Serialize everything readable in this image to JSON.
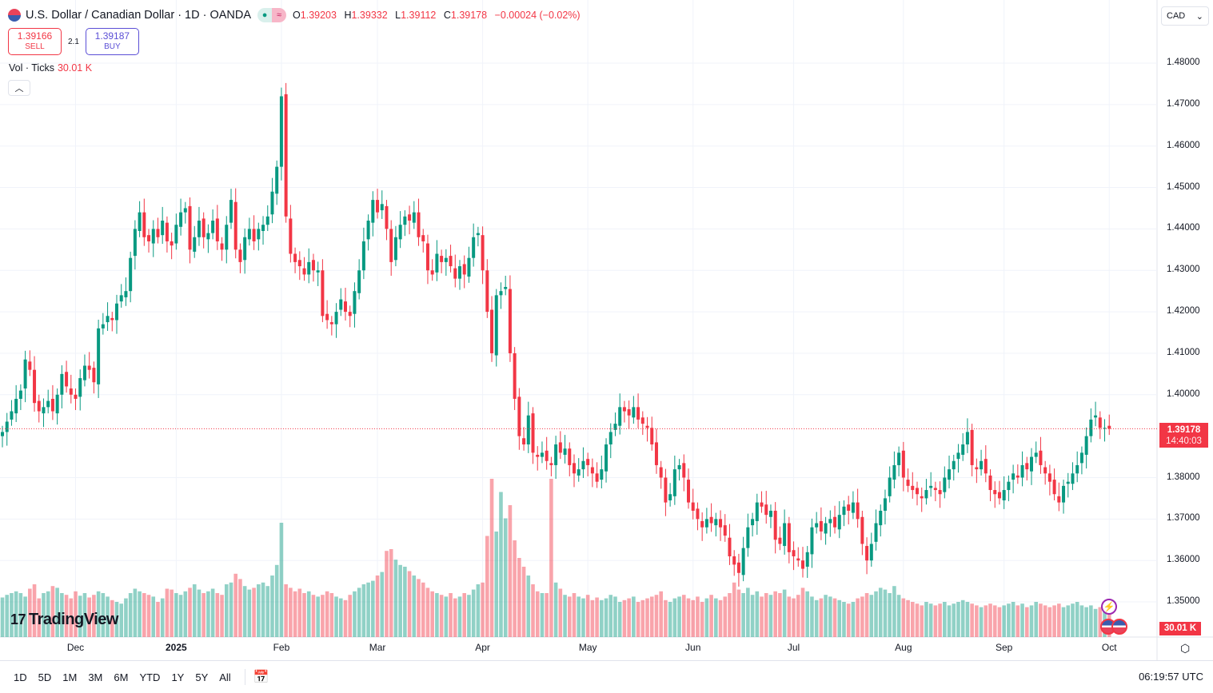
{
  "header": {
    "symbol_title": "U.S. Dollar / Canadian Dollar · 1D · OANDA",
    "ohlc": {
      "o_label": "O",
      "o": "1.39203",
      "h_label": "H",
      "h": "1.39332",
      "l_label": "L",
      "l": "1.39112",
      "c_label": "C",
      "c": "1.39178",
      "change": "−0.00024 (−0.02%)"
    }
  },
  "trade": {
    "sell_price": "1.39166",
    "sell_label": "SELL",
    "spread": "2.1",
    "buy_price": "1.39187",
    "buy_label": "BUY"
  },
  "volume_legend": {
    "label": "Vol · Ticks",
    "value": "30.01 K"
  },
  "currency_select": "CAD",
  "logo": "TradingView",
  "current_price": {
    "price": "1.39178",
    "countdown": "14:40:03",
    "volume": "30.01 K"
  },
  "colors": {
    "up": "#089981",
    "down": "#f23645"
  },
  "chart_data": {
    "type": "candlestick",
    "title": "U.S. Dollar / Canadian Dollar · 1D · OANDA",
    "y_ticks": [
      "1.48000",
      "1.47000",
      "1.46000",
      "1.45000",
      "1.44000",
      "1.43000",
      "1.42000",
      "1.41000",
      "1.40000",
      "1.38000",
      "1.37000",
      "1.36000",
      "1.35000"
    ],
    "ylim": [
      1.345,
      1.4815
    ],
    "x_ticks": [
      {
        "label": "Dec",
        "index": 16
      },
      {
        "label": "2025",
        "index": 38
      },
      {
        "label": "Feb",
        "index": 61
      },
      {
        "label": "Mar",
        "index": 82
      },
      {
        "label": "Apr",
        "index": 105
      },
      {
        "label": "May",
        "index": 128
      },
      {
        "label": "Jun",
        "index": 151
      },
      {
        "label": "Jul",
        "index": 173
      },
      {
        "label": "Aug",
        "index": 197
      },
      {
        "label": "Sep",
        "index": 219
      },
      {
        "label": "Oct",
        "index": 242
      }
    ],
    "closes": [
      1.391,
      1.3935,
      1.396,
      1.399,
      1.401,
      1.4085,
      1.406,
      1.398,
      1.396,
      1.397,
      1.3985,
      1.396,
      1.4,
      1.405,
      1.402,
      1.4,
      1.399,
      1.404,
      1.407,
      1.406,
      1.403,
      1.416,
      1.417,
      1.419,
      1.418,
      1.422,
      1.424,
      1.425,
      1.433,
      1.44,
      1.444,
      1.438,
      1.437,
      1.44,
      1.438,
      1.442,
      1.437,
      1.436,
      1.441,
      1.444,
      1.445,
      1.435,
      1.438,
      1.442,
      1.438,
      1.439,
      1.442,
      1.437,
      1.435,
      1.441,
      1.447,
      1.435,
      1.432,
      1.438,
      1.44,
      1.437,
      1.44,
      1.441,
      1.443,
      1.449,
      1.455,
      1.472,
      1.443,
      1.434,
      1.432,
      1.431,
      1.429,
      1.432,
      1.43,
      1.43,
      1.419,
      1.418,
      1.417,
      1.42,
      1.423,
      1.42,
      1.419,
      1.425,
      1.43,
      1.437,
      1.442,
      1.447,
      1.444,
      1.446,
      1.44,
      1.432,
      1.438,
      1.441,
      1.443,
      1.442,
      1.444,
      1.438,
      1.437,
      1.43,
      1.429,
      1.434,
      1.432,
      1.433,
      1.431,
      1.428,
      1.431,
      1.429,
      1.433,
      1.438,
      1.439,
      1.43,
      1.42,
      1.41,
      1.424,
      1.425,
      1.426,
      1.41,
      1.399,
      1.39,
      1.388,
      1.395,
      1.386,
      1.385,
      1.386,
      1.384,
      1.383,
      1.388,
      1.386,
      1.387,
      1.383,
      1.381,
      1.382,
      1.384,
      1.383,
      1.381,
      1.379,
      1.382,
      1.388,
      1.391,
      1.393,
      1.397,
      1.396,
      1.395,
      1.397,
      1.394,
      1.393,
      1.392,
      1.388,
      1.383,
      1.38,
      1.374,
      1.376,
      1.382,
      1.383,
      1.38,
      1.374,
      1.372,
      1.37,
      1.368,
      1.37,
      1.369,
      1.37,
      1.368,
      1.366,
      1.361,
      1.359,
      1.357,
      1.363,
      1.368,
      1.37,
      1.374,
      1.373,
      1.371,
      1.372,
      1.365,
      1.364,
      1.369,
      1.362,
      1.361,
      1.36,
      1.358,
      1.362,
      1.368,
      1.369,
      1.367,
      1.369,
      1.37,
      1.368,
      1.371,
      1.373,
      1.372,
      1.374,
      1.37,
      1.364,
      1.36,
      1.364,
      1.369,
      1.372,
      1.375,
      1.38,
      1.383,
      1.386,
      1.38,
      1.378,
      1.377,
      1.376,
      1.375,
      1.377,
      1.378,
      1.377,
      1.376,
      1.38,
      1.382,
      1.384,
      1.386,
      1.388,
      1.391,
      1.383,
      1.382,
      1.384,
      1.381,
      1.377,
      1.376,
      1.375,
      1.377,
      1.379,
      1.381,
      1.38,
      1.383,
      1.382,
      1.385,
      1.386,
      1.383,
      1.381,
      1.379,
      1.376,
      1.374,
      1.378,
      1.379,
      1.381,
      1.383,
      1.386,
      1.39,
      1.394,
      1.395,
      1.392,
      1.392,
      1.3918
    ],
    "volumes_k": [
      45,
      48,
      50,
      52,
      50,
      46,
      55,
      60,
      44,
      50,
      52,
      58,
      56,
      50,
      48,
      44,
      52,
      47,
      50,
      45,
      48,
      52,
      50,
      46,
      42,
      40,
      38,
      44,
      50,
      55,
      52,
      50,
      48,
      46,
      40,
      44,
      55,
      54,
      50,
      48,
      52,
      56,
      60,
      54,
      50,
      52,
      55,
      50,
      48,
      60,
      62,
      72,
      66,
      58,
      54,
      56,
      60,
      62,
      58,
      70,
      82,
      130,
      60,
      56,
      52,
      55,
      50,
      52,
      48,
      46,
      48,
      52,
      50,
      46,
      44,
      42,
      48,
      52,
      56,
      60,
      62,
      64,
      70,
      74,
      98,
      100,
      88,
      82,
      80,
      75,
      70,
      66,
      62,
      56,
      52,
      50,
      48,
      46,
      50,
      44,
      46,
      50,
      48,
      54,
      60,
      62,
      115,
      180,
      120,
      165,
      135,
      150,
      110,
      90,
      80,
      70,
      60,
      52,
      50,
      50,
      180,
      62,
      55,
      48,
      46,
      50,
      46,
      44,
      48,
      42,
      45,
      42,
      44,
      48,
      46,
      40,
      42,
      44,
      46,
      40,
      42,
      44,
      46,
      48,
      52,
      42,
      40,
      44,
      46,
      48,
      44,
      42,
      46,
      40,
      44,
      48,
      44,
      42,
      46,
      50,
      62,
      54,
      50,
      56,
      48,
      52,
      46,
      50,
      48,
      52,
      50,
      54,
      46,
      44,
      48,
      56,
      52,
      46,
      42,
      44,
      48,
      46,
      44,
      42,
      40,
      38,
      40,
      44,
      46,
      50,
      48,
      52,
      56,
      54,
      50,
      58,
      48,
      44,
      42,
      40,
      38,
      36,
      40,
      38,
      36,
      38,
      40,
      36,
      38,
      40,
      42,
      40,
      38,
      36,
      34,
      36,
      38,
      36,
      34,
      36,
      38,
      40,
      36,
      38,
      34,
      36,
      40,
      38,
      36,
      34,
      36,
      38,
      34,
      36,
      38,
      40,
      36,
      34,
      36,
      32,
      34,
      30,
      30.01
    ]
  },
  "bottom_bar": {
    "ranges": [
      "1D",
      "5D",
      "1M",
      "3M",
      "6M",
      "YTD",
      "1Y",
      "5Y",
      "All"
    ],
    "clock": "06:19:57 UTC"
  }
}
